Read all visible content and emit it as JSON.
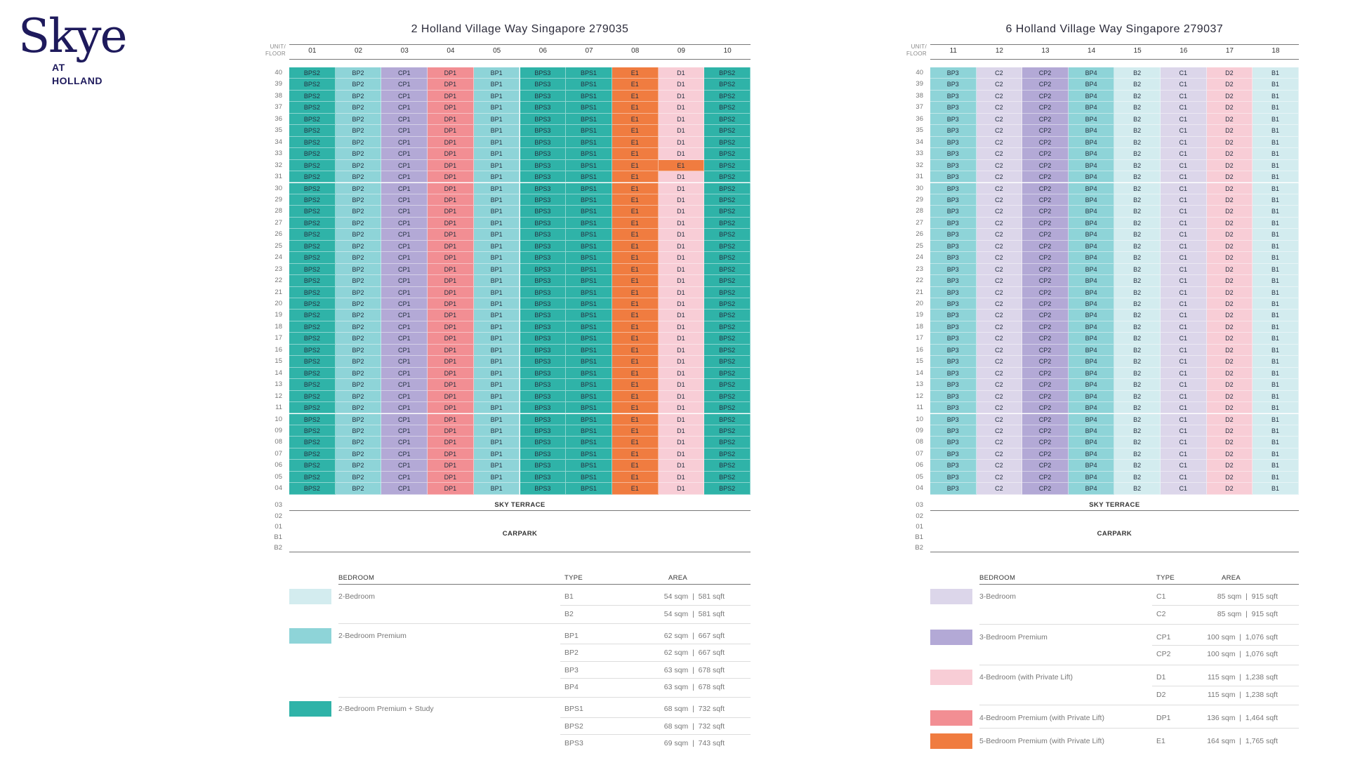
{
  "logo": {
    "main": "Skye",
    "sub1": "AT",
    "sub2": "HOLLAND"
  },
  "labels": {
    "unit": "UNIT/",
    "floor": "FLOOR",
    "sky_terrace": "SKY TERRACE",
    "carpark": "CARPARK",
    "legend_bedroom": "BEDROOM",
    "legend_type": "TYPE",
    "legend_area": "AREA",
    "lower_floors": [
      "03",
      "02",
      "01",
      "B1",
      "B2"
    ]
  },
  "colors": {
    "B1": "#d3ecef",
    "B2": "#d3ecef",
    "BP1": "#8ed4d8",
    "BP2": "#8ed4d8",
    "BP3": "#8ed4d8",
    "BP4": "#8ed4d8",
    "BPS1": "#2fb3a8",
    "BPS2": "#2fb3a8",
    "BPS3": "#2fb3a8",
    "C1": "#dcd6ea",
    "C2": "#dcd6ea",
    "CP1": "#b3a9d6",
    "CP2": "#b3a9d6",
    "D1": "#f8cdd6",
    "D2": "#f8cdd6",
    "DP1": "#f28e93",
    "E1": "#f07c40"
  },
  "floors": [
    "40",
    "39",
    "38",
    "37",
    "36",
    "35",
    "34",
    "33",
    "32",
    "31",
    "30",
    "29",
    "28",
    "27",
    "26",
    "25",
    "24",
    "23",
    "22",
    "21",
    "20",
    "19",
    "18",
    "17",
    "16",
    "15",
    "14",
    "13",
    "12",
    "11",
    "10",
    "09",
    "08",
    "07",
    "06",
    "05",
    "04"
  ],
  "buildings": [
    {
      "title": "2 Holland Village Way Singapore 279035",
      "units": [
        "01",
        "02",
        "03",
        "04",
        "05",
        "06",
        "07",
        "08",
        "09",
        "10"
      ],
      "types": [
        "BPS2",
        "BP2",
        "CP1",
        "DP1",
        "BP1",
        "BPS3",
        "BPS1",
        "E1",
        "D1",
        "BPS2"
      ],
      "overrides": [
        {
          "floor": "32",
          "unit": "09",
          "type": "E1"
        }
      ],
      "legend": [
        {
          "name": "2-Bedroom",
          "color": "#d3ecef",
          "rows": [
            {
              "type": "B1",
              "area": "54 sqm  |  581 sqft"
            },
            {
              "type": "B2",
              "area": "54 sqm  |  581 sqft"
            }
          ]
        },
        {
          "name": "2-Bedroom Premium",
          "color": "#8ed4d8",
          "rows": [
            {
              "type": "BP1",
              "area": "62 sqm  |  667 sqft"
            },
            {
              "type": "BP2",
              "area": "62 sqm  |  667 sqft"
            },
            {
              "type": "BP3",
              "area": "63 sqm  |  678 sqft"
            },
            {
              "type": "BP4",
              "area": "63 sqm  |  678 sqft"
            }
          ]
        },
        {
          "name": "2-Bedroom Premium + Study",
          "color": "#2fb3a8",
          "rows": [
            {
              "type": "BPS1",
              "area": "68 sqm  |  732 sqft"
            },
            {
              "type": "BPS2",
              "area": "68 sqm  |  732 sqft"
            },
            {
              "type": "BPS3",
              "area": "69 sqm  |  743 sqft"
            }
          ]
        }
      ]
    },
    {
      "title": "6 Holland Village Way Singapore 279037",
      "units": [
        "11",
        "12",
        "13",
        "14",
        "15",
        "16",
        "17",
        "18"
      ],
      "types": [
        "BP3",
        "C2",
        "CP2",
        "BP4",
        "B2",
        "C1",
        "D2",
        "B1"
      ],
      "overrides": [],
      "legend": [
        {
          "name": "3-Bedroom",
          "color": "#dcd6ea",
          "rows": [
            {
              "type": "C1",
              "area": "85 sqm  |  915 sqft"
            },
            {
              "type": "C2",
              "area": "85 sqm  |  915 sqft"
            }
          ]
        },
        {
          "name": "3-Bedroom Premium",
          "color": "#b3a9d6",
          "rows": [
            {
              "type": "CP1",
              "area": "100 sqm  |  1,076 sqft"
            },
            {
              "type": "CP2",
              "area": "100 sqm  |  1,076 sqft"
            }
          ]
        },
        {
          "name": "4-Bedroom (with Private Lift)",
          "color": "#f8cdd6",
          "rows": [
            {
              "type": "D1",
              "area": "115 sqm  |  1,238 sqft"
            },
            {
              "type": "D2",
              "area": "115 sqm  |  1,238 sqft"
            }
          ]
        },
        {
          "name": "4-Bedroom Premium (with Private Lift)",
          "color": "#f28e93",
          "rows": [
            {
              "type": "DP1",
              "area": "136 sqm  |  1,464 sqft"
            }
          ]
        },
        {
          "name": "5-Bedroom Premium (with Private Lift)",
          "color": "#f07c40",
          "rows": [
            {
              "type": "E1",
              "area": "164 sqm  |  1,765 sqft"
            }
          ]
        }
      ]
    }
  ]
}
